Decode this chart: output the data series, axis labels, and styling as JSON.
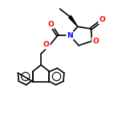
{
  "bg_color": "#ffffff",
  "bond_color": "#000000",
  "atom_colors": {
    "O": "#ff0000",
    "N": "#0000ff",
    "C": "#000000"
  },
  "bond_width": 1.2,
  "font_size_atom": 6.5,
  "fig_size": [
    1.52,
    1.52
  ],
  "dpi": 100,
  "xlim": [
    0,
    10
  ],
  "ylim": [
    0,
    11
  ]
}
